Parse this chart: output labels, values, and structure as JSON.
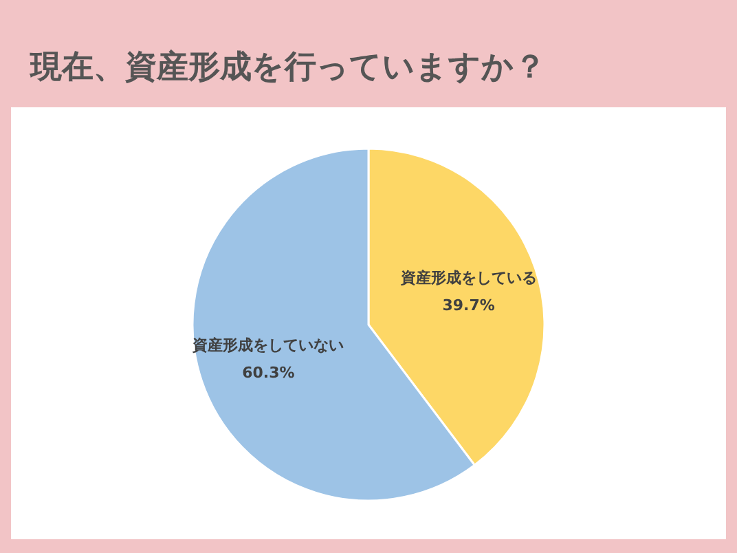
{
  "chart_data": {
    "type": "pie",
    "title": "現在、資産形成を行っていますか？",
    "categories": [
      "資産形成をしている",
      "資産形成をしていない"
    ],
    "values": [
      39.7,
      60.3
    ],
    "value_labels": [
      "39.7%",
      "60.3%"
    ],
    "colors": [
      "#fdd766",
      "#9dc3e6"
    ],
    "legend": false
  }
}
